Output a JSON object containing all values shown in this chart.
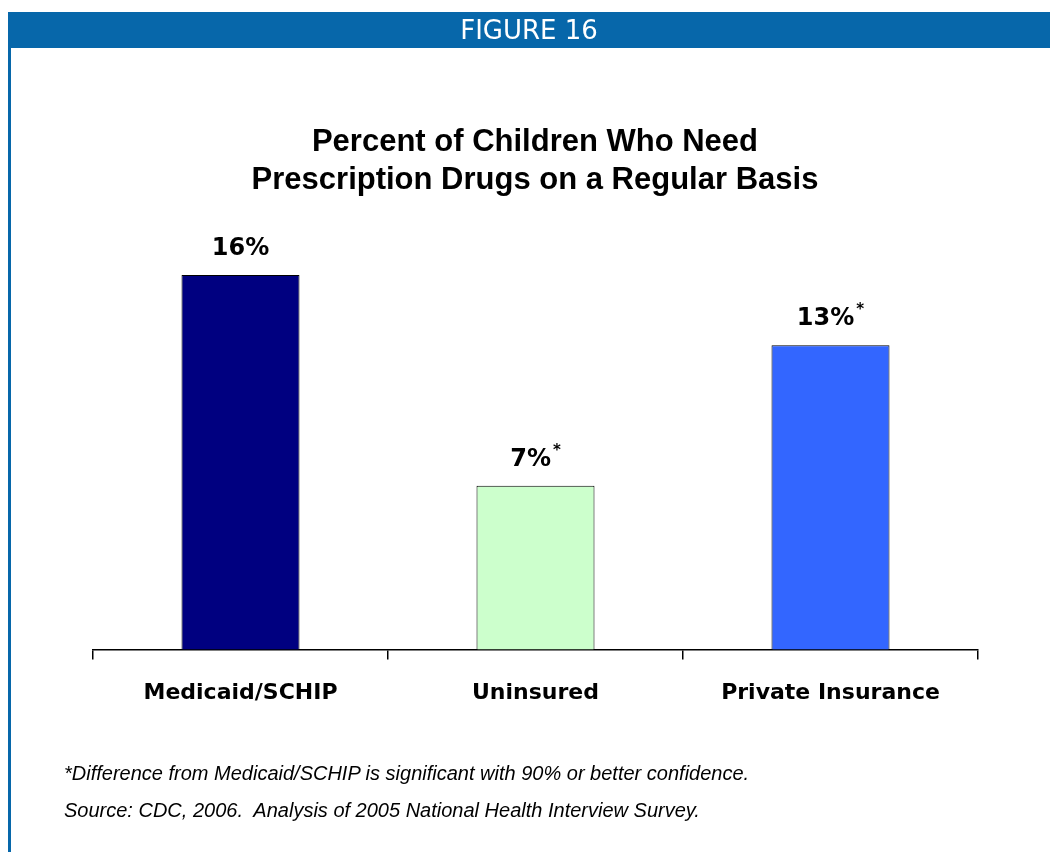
{
  "chart_data": {
    "type": "bar",
    "title": "Percent of Children Who Need Prescription Drugs on a Regular Basis",
    "categories": [
      "Medicaid/SCHIP",
      "Uninsured",
      "Private Insurance"
    ],
    "values": [
      16,
      7,
      13
    ],
    "colors": [
      "#000080",
      "#ccffcc",
      "#3366ff"
    ],
    "value_labels": [
      "16%",
      "7%$^{*}$",
      "13%$^{*}$"
    ],
    "annotations": [
      "FIGURE 16",
      "*Difference from Medicaid/SCHIP is significant with 90% or better confidence.",
      "Source: CDC, 2006.  Analysis of 2005 National Health Interview Survey."
    ]
  }
}
